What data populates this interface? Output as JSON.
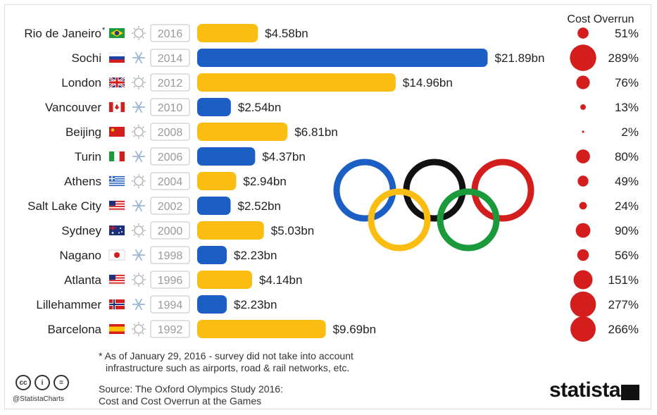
{
  "chart_data": {
    "type": "bar",
    "orientation": "horizontal",
    "value_unit": "$bn",
    "right_column_header": "Cost Overrun",
    "series_colors": {
      "summer": "#fbbd12",
      "winter": "#1c5fc4",
      "overrun": "#d41e1e"
    },
    "rows": [
      {
        "city": "Rio de Janeiro",
        "marker": "*",
        "flag": "flag-brazil",
        "season": "summer",
        "year": "2016",
        "cost": 4.58,
        "cost_label": "$4.58bn",
        "overrun": 51,
        "overrun_label": "51%"
      },
      {
        "city": "Sochi",
        "marker": "",
        "flag": "flag-russia",
        "season": "winter",
        "year": "2014",
        "cost": 21.89,
        "cost_label": "$21.89bn",
        "overrun": 289,
        "overrun_label": "289%"
      },
      {
        "city": "London",
        "marker": "",
        "flag": "flag-uk",
        "season": "summer",
        "year": "2012",
        "cost": 14.96,
        "cost_label": "$14.96bn",
        "overrun": 76,
        "overrun_label": "76%"
      },
      {
        "city": "Vancouver",
        "marker": "",
        "flag": "flag-canada",
        "season": "winter",
        "year": "2010",
        "cost": 2.54,
        "cost_label": "$2.54bn",
        "overrun": 13,
        "overrun_label": "13%"
      },
      {
        "city": "Beijing",
        "marker": "",
        "flag": "flag-china",
        "season": "summer",
        "year": "2008",
        "cost": 6.81,
        "cost_label": "$6.81bn",
        "overrun": 2,
        "overrun_label": "2%"
      },
      {
        "city": "Turin",
        "marker": "",
        "flag": "flag-italy",
        "season": "winter",
        "year": "2006",
        "cost": 4.37,
        "cost_label": "$4.37bn",
        "overrun": 80,
        "overrun_label": "80%"
      },
      {
        "city": "Athens",
        "marker": "",
        "flag": "flag-greece",
        "season": "summer",
        "year": "2004",
        "cost": 2.94,
        "cost_label": "$2.94bn",
        "overrun": 49,
        "overrun_label": "49%"
      },
      {
        "city": "Salt Lake City",
        "marker": "",
        "flag": "flag-usa",
        "season": "winter",
        "year": "2002",
        "cost": 2.52,
        "cost_label": "$2.52bn",
        "overrun": 24,
        "overrun_label": "24%"
      },
      {
        "city": "Sydney",
        "marker": "",
        "flag": "flag-australia",
        "season": "summer",
        "year": "2000",
        "cost": 5.03,
        "cost_label": "$5.03bn",
        "overrun": 90,
        "overrun_label": "90%"
      },
      {
        "city": "Nagano",
        "marker": "",
        "flag": "flag-japan",
        "season": "winter",
        "year": "1998",
        "cost": 2.23,
        "cost_label": "$2.23bn",
        "overrun": 56,
        "overrun_label": "56%"
      },
      {
        "city": "Atlanta",
        "marker": "",
        "flag": "flag-usa",
        "season": "summer",
        "year": "1996",
        "cost": 4.14,
        "cost_label": "$4.14bn",
        "overrun": 151,
        "overrun_label": "151%"
      },
      {
        "city": "Lillehammer",
        "marker": "",
        "flag": "flag-norway",
        "season": "winter",
        "year": "1994",
        "cost": 2.23,
        "cost_label": "$2.23bn",
        "overrun": 277,
        "overrun_label": "277%"
      },
      {
        "city": "Barcelona",
        "marker": "",
        "flag": "flag-spain",
        "season": "summer",
        "year": "1992",
        "cost": 9.69,
        "cost_label": "$9.69bn",
        "overrun": 266,
        "overrun_label": "266%"
      }
    ],
    "legend": "none",
    "grid": false,
    "decoration": "olympic-rings-icon"
  },
  "footnote": {
    "line1": "* As of January 29, 2016 - survey did not take into account",
    "line2": "infrastructure such as airports, road & rail networks, etc."
  },
  "source": {
    "line1": "Source: The Oxford Olympics Study 2016:",
    "line2": "Cost and Cost Overrun at the Games"
  },
  "branding": {
    "handle": "@StatistaCharts",
    "logo_text": "statista",
    "license_icons": [
      "cc-icon",
      "attribution-icon",
      "no-derivatives-icon"
    ],
    "license_glyphs": [
      "cc",
      "i",
      "="
    ]
  }
}
